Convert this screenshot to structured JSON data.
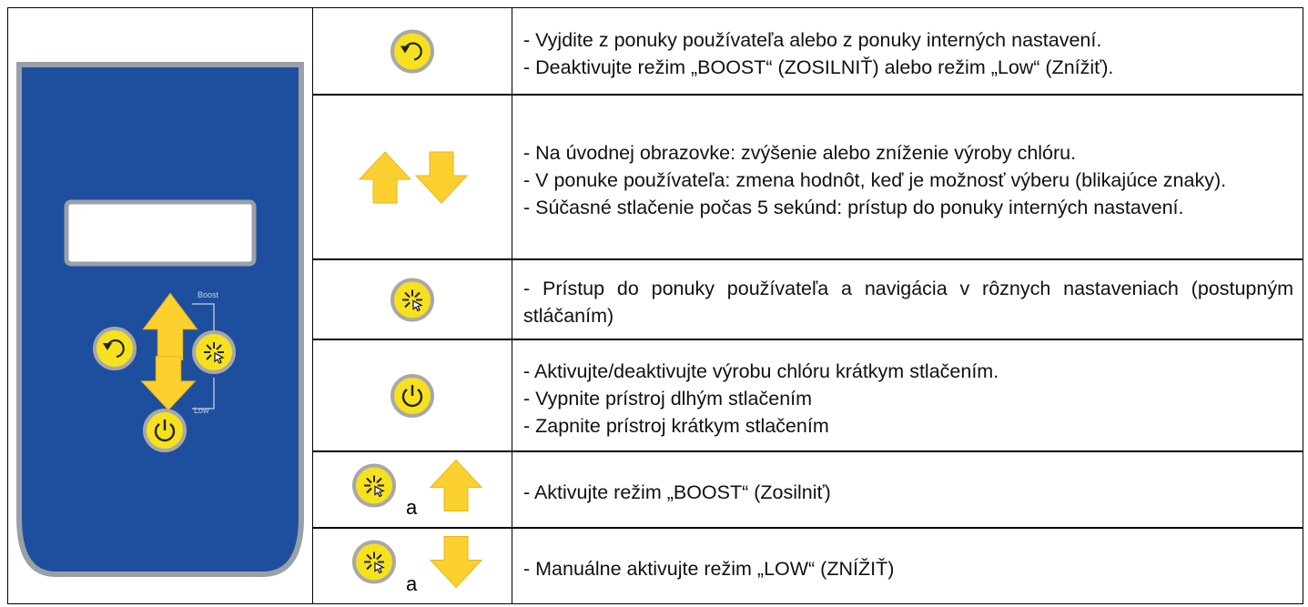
{
  "panel": {
    "boost": "Boost",
    "low": "Low"
  },
  "table": {
    "rows": [
      {
        "lines": [
          "- Vyjdite z ponuky používateľa alebo z ponuky interných nastavení.",
          "- Deaktivujte režim „BOOST“ (ZOSILNIŤ) alebo režim „Low“ (Znížiť)."
        ]
      },
      {
        "lines": [
          "- Na úvodnej obrazovke: zvýšenie alebo zníženie výroby chlóru.",
          "- V ponuke používateľa: zmena hodnôt, keď je možnosť výberu (blikajúce znaky).",
          "- Súčasné stlačenie počas 5 sekúnd: prístup do ponuky interných nastavení."
        ]
      },
      {
        "lines": [
          "- Prístup do ponuky používateľa a navigácia v rôznych nastaveniach (postupným stláčaním)"
        ]
      },
      {
        "lines": [
          "- Aktivujte/deaktivujte výrobu chlóru krátkym stlačením.",
          "- Vypnite prístroj dlhým stlačením",
          "- Zapnite prístroj krátkym stlačením"
        ]
      },
      {
        "connector": "a",
        "lines": [
          "- Aktivujte režim „BOOST“ (Zosilniť)"
        ]
      },
      {
        "connector": "a",
        "lines": [
          "- Manuálne aktivujte režim „LOW“ (ZNÍŽIŤ)"
        ]
      }
    ]
  }
}
